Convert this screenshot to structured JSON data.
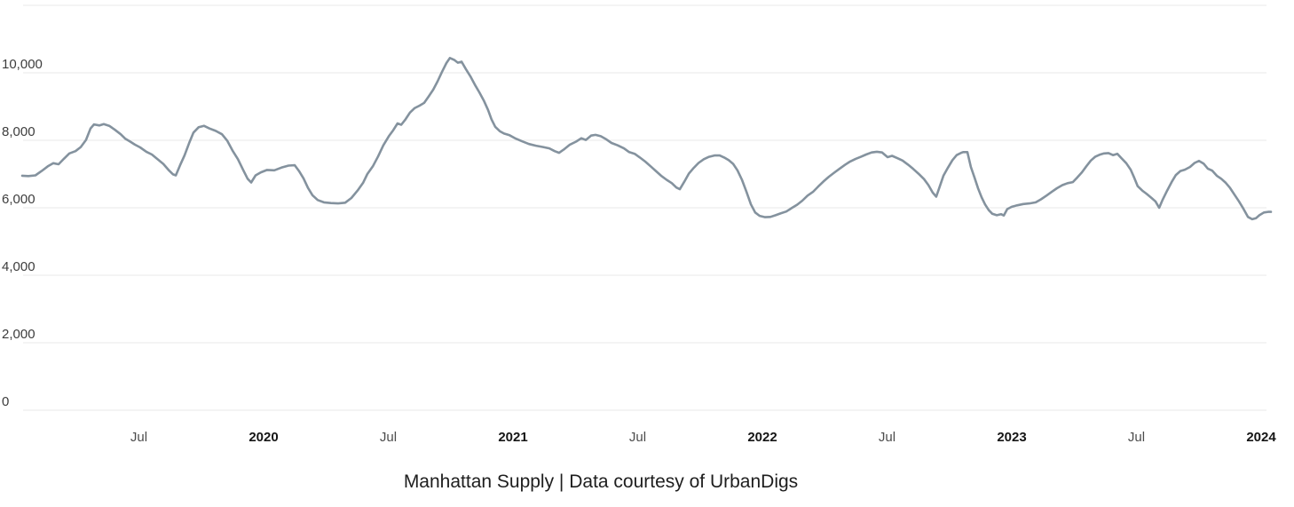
{
  "caption": "Manhattan Supply | Data courtesy of UrbanDigs",
  "chart_data": {
    "type": "line",
    "title": "Manhattan Supply",
    "caption": "Manhattan Supply | Data courtesy of UrbanDigs",
    "legend": [],
    "grid": true,
    "grid_color": "#e8e8e8",
    "line_color": "#7d8c99",
    "ylim": [
      0,
      12000
    ],
    "xlim_years": [
      2019.02,
      2024.06
    ],
    "y_axis": {
      "ticks": [
        {
          "value": 0,
          "label": "0"
        },
        {
          "value": 2000,
          "label": "2,000"
        },
        {
          "value": 4000,
          "label": "4,000"
        },
        {
          "value": 6000,
          "label": "6,000"
        },
        {
          "value": 8000,
          "label": "8,000"
        },
        {
          "value": 10000,
          "label": "10,000"
        },
        {
          "value": 12000,
          "label": ""
        }
      ]
    },
    "x_axis": {
      "ticks": [
        {
          "t": 2019.5,
          "label": "Jul",
          "year": false
        },
        {
          "t": 2020.0,
          "label": "2020",
          "year": true
        },
        {
          "t": 2020.5,
          "label": "Jul",
          "year": false
        },
        {
          "t": 2021.0,
          "label": "2021",
          "year": true
        },
        {
          "t": 2021.5,
          "label": "Jul",
          "year": false
        },
        {
          "t": 2022.0,
          "label": "2022",
          "year": true
        },
        {
          "t": 2022.5,
          "label": "Jul",
          "year": false
        },
        {
          "t": 2023.0,
          "label": "2023",
          "year": true
        },
        {
          "t": 2023.5,
          "label": "Jul",
          "year": false
        },
        {
          "t": 2024.0,
          "label": "2024",
          "year": true
        }
      ]
    },
    "series": [
      {
        "name": "Manhattan Supply",
        "points": [
          [
            2019.032,
            6950
          ],
          [
            2019.057,
            6940
          ],
          [
            2019.085,
            6960
          ],
          [
            2019.11,
            7090
          ],
          [
            2019.135,
            7230
          ],
          [
            2019.157,
            7320
          ],
          [
            2019.178,
            7290
          ],
          [
            2019.199,
            7450
          ],
          [
            2019.221,
            7610
          ],
          [
            2019.246,
            7680
          ],
          [
            2019.267,
            7800
          ],
          [
            2019.288,
            8010
          ],
          [
            2019.306,
            8350
          ],
          [
            2019.32,
            8470
          ],
          [
            2019.342,
            8440
          ],
          [
            2019.359,
            8480
          ],
          [
            2019.381,
            8430
          ],
          [
            2019.402,
            8320
          ],
          [
            2019.427,
            8180
          ],
          [
            2019.445,
            8050
          ],
          [
            2019.463,
            7970
          ],
          [
            2019.484,
            7870
          ],
          [
            2019.505,
            7790
          ],
          [
            2019.53,
            7660
          ],
          [
            2019.552,
            7580
          ],
          [
            2019.577,
            7430
          ],
          [
            2019.598,
            7300
          ],
          [
            2019.619,
            7120
          ],
          [
            2019.637,
            6990
          ],
          [
            2019.648,
            6960
          ],
          [
            2019.665,
            7260
          ],
          [
            2019.683,
            7550
          ],
          [
            2019.701,
            7910
          ],
          [
            2019.719,
            8230
          ],
          [
            2019.74,
            8390
          ],
          [
            2019.761,
            8430
          ],
          [
            2019.783,
            8350
          ],
          [
            2019.808,
            8280
          ],
          [
            2019.833,
            8180
          ],
          [
            2019.854,
            7990
          ],
          [
            2019.875,
            7700
          ],
          [
            2019.897,
            7440
          ],
          [
            2019.918,
            7120
          ],
          [
            2019.936,
            6860
          ],
          [
            2019.95,
            6750
          ],
          [
            2019.968,
            6960
          ],
          [
            2019.989,
            7050
          ],
          [
            2020.014,
            7120
          ],
          [
            2020.043,
            7110
          ],
          [
            2020.071,
            7190
          ],
          [
            2020.1,
            7250
          ],
          [
            2020.125,
            7260
          ],
          [
            2020.142,
            7090
          ],
          [
            2020.16,
            6870
          ],
          [
            2020.178,
            6590
          ],
          [
            2020.196,
            6370
          ],
          [
            2020.217,
            6230
          ],
          [
            2020.242,
            6160
          ],
          [
            2020.27,
            6140
          ],
          [
            2020.299,
            6130
          ],
          [
            2020.327,
            6150
          ],
          [
            2020.352,
            6290
          ],
          [
            2020.377,
            6510
          ],
          [
            2020.399,
            6740
          ],
          [
            2020.416,
            7000
          ],
          [
            2020.438,
            7230
          ],
          [
            2020.459,
            7520
          ],
          [
            2020.48,
            7850
          ],
          [
            2020.502,
            8120
          ],
          [
            2020.52,
            8300
          ],
          [
            2020.537,
            8500
          ],
          [
            2020.552,
            8460
          ],
          [
            2020.569,
            8620
          ],
          [
            2020.587,
            8820
          ],
          [
            2020.605,
            8950
          ],
          [
            2020.626,
            9030
          ],
          [
            2020.644,
            9110
          ],
          [
            2020.662,
            9300
          ],
          [
            2020.68,
            9500
          ],
          [
            2020.698,
            9750
          ],
          [
            2020.715,
            10020
          ],
          [
            2020.733,
            10290
          ],
          [
            2020.747,
            10440
          ],
          [
            2020.765,
            10380
          ],
          [
            2020.779,
            10300
          ],
          [
            2020.794,
            10330
          ],
          [
            2020.811,
            10110
          ],
          [
            2020.829,
            9900
          ],
          [
            2020.847,
            9650
          ],
          [
            2020.865,
            9420
          ],
          [
            2020.883,
            9180
          ],
          [
            2020.9,
            8900
          ],
          [
            2020.914,
            8620
          ],
          [
            2020.929,
            8400
          ],
          [
            2020.947,
            8270
          ],
          [
            2020.964,
            8200
          ],
          [
            2020.986,
            8150
          ],
          [
            2021.011,
            8050
          ],
          [
            2021.036,
            7970
          ],
          [
            2021.064,
            7890
          ],
          [
            2021.092,
            7840
          ],
          [
            2021.121,
            7800
          ],
          [
            2021.146,
            7760
          ],
          [
            2021.167,
            7680
          ],
          [
            2021.185,
            7630
          ],
          [
            2021.206,
            7740
          ],
          [
            2021.228,
            7870
          ],
          [
            2021.253,
            7960
          ],
          [
            2021.274,
            8060
          ],
          [
            2021.292,
            8010
          ],
          [
            2021.313,
            8140
          ],
          [
            2021.331,
            8160
          ],
          [
            2021.352,
            8120
          ],
          [
            2021.374,
            8030
          ],
          [
            2021.395,
            7920
          ],
          [
            2021.42,
            7850
          ],
          [
            2021.445,
            7760
          ],
          [
            2021.466,
            7650
          ],
          [
            2021.488,
            7600
          ],
          [
            2021.509,
            7490
          ],
          [
            2021.53,
            7370
          ],
          [
            2021.552,
            7230
          ],
          [
            2021.573,
            7090
          ],
          [
            2021.594,
            6950
          ],
          [
            2021.616,
            6830
          ],
          [
            2021.637,
            6730
          ],
          [
            2021.655,
            6600
          ],
          [
            2021.669,
            6550
          ],
          [
            2021.687,
            6770
          ],
          [
            2021.705,
            7010
          ],
          [
            2021.722,
            7160
          ],
          [
            2021.744,
            7330
          ],
          [
            2021.765,
            7440
          ],
          [
            2021.786,
            7510
          ],
          [
            2021.808,
            7550
          ],
          [
            2021.829,
            7550
          ],
          [
            2021.847,
            7490
          ],
          [
            2021.865,
            7410
          ],
          [
            2021.883,
            7300
          ],
          [
            2021.9,
            7110
          ],
          [
            2021.918,
            6830
          ],
          [
            2021.936,
            6480
          ],
          [
            2021.954,
            6100
          ],
          [
            2021.971,
            5860
          ],
          [
            2021.989,
            5760
          ],
          [
            2022.011,
            5720
          ],
          [
            2022.032,
            5730
          ],
          [
            2022.053,
            5780
          ],
          [
            2022.075,
            5840
          ],
          [
            2022.096,
            5890
          ],
          [
            2022.117,
            5990
          ],
          [
            2022.139,
            6090
          ],
          [
            2022.16,
            6210
          ],
          [
            2022.181,
            6360
          ],
          [
            2022.203,
            6470
          ],
          [
            2022.224,
            6630
          ],
          [
            2022.245,
            6780
          ],
          [
            2022.267,
            6920
          ],
          [
            2022.288,
            7040
          ],
          [
            2022.31,
            7160
          ],
          [
            2022.331,
            7270
          ],
          [
            2022.352,
            7370
          ],
          [
            2022.374,
            7450
          ],
          [
            2022.395,
            7510
          ],
          [
            2022.416,
            7580
          ],
          [
            2022.438,
            7640
          ],
          [
            2022.459,
            7660
          ],
          [
            2022.48,
            7640
          ],
          [
            2022.502,
            7500
          ],
          [
            2022.52,
            7540
          ],
          [
            2022.541,
            7470
          ],
          [
            2022.562,
            7400
          ],
          [
            2022.584,
            7280
          ],
          [
            2022.605,
            7150
          ],
          [
            2022.626,
            7010
          ],
          [
            2022.648,
            6850
          ],
          [
            2022.666,
            6670
          ],
          [
            2022.683,
            6450
          ],
          [
            2022.697,
            6330
          ],
          [
            2022.712,
            6650
          ],
          [
            2022.726,
            6950
          ],
          [
            2022.744,
            7190
          ],
          [
            2022.762,
            7410
          ],
          [
            2022.779,
            7560
          ],
          [
            2022.797,
            7630
          ],
          [
            2022.805,
            7650
          ],
          [
            2022.822,
            7650
          ],
          [
            2022.836,
            7210
          ],
          [
            2022.851,
            6890
          ],
          [
            2022.865,
            6570
          ],
          [
            2022.879,
            6310
          ],
          [
            2022.893,
            6100
          ],
          [
            2022.908,
            5930
          ],
          [
            2022.922,
            5820
          ],
          [
            2022.94,
            5780
          ],
          [
            2022.957,
            5810
          ],
          [
            2022.968,
            5770
          ],
          [
            2022.982,
            5960
          ],
          [
            2023.0,
            6030
          ],
          [
            2023.021,
            6070
          ],
          [
            2023.046,
            6110
          ],
          [
            2023.071,
            6130
          ],
          [
            2023.096,
            6160
          ],
          [
            2023.117,
            6250
          ],
          [
            2023.139,
            6360
          ],
          [
            2023.16,
            6470
          ],
          [
            2023.181,
            6580
          ],
          [
            2023.203,
            6670
          ],
          [
            2023.224,
            6730
          ],
          [
            2023.245,
            6760
          ],
          [
            2023.263,
            6900
          ],
          [
            2023.281,
            7050
          ],
          [
            2023.299,
            7230
          ],
          [
            2023.317,
            7400
          ],
          [
            2023.334,
            7510
          ],
          [
            2023.352,
            7570
          ],
          [
            2023.37,
            7610
          ],
          [
            2023.388,
            7620
          ],
          [
            2023.406,
            7560
          ],
          [
            2023.423,
            7600
          ],
          [
            2023.441,
            7460
          ],
          [
            2023.459,
            7320
          ],
          [
            2023.477,
            7130
          ],
          [
            2023.491,
            6890
          ],
          [
            2023.505,
            6640
          ],
          [
            2023.523,
            6510
          ],
          [
            2023.541,
            6410
          ],
          [
            2023.559,
            6300
          ],
          [
            2023.576,
            6190
          ],
          [
            2023.591,
            6000
          ],
          [
            2023.605,
            6240
          ],
          [
            2023.623,
            6510
          ],
          [
            2023.641,
            6760
          ],
          [
            2023.658,
            6970
          ],
          [
            2023.676,
            7090
          ],
          [
            2023.694,
            7130
          ],
          [
            2023.715,
            7210
          ],
          [
            2023.733,
            7330
          ],
          [
            2023.751,
            7390
          ],
          [
            2023.769,
            7310
          ],
          [
            2023.786,
            7160
          ],
          [
            2023.804,
            7100
          ],
          [
            2023.822,
            6950
          ],
          [
            2023.84,
            6860
          ],
          [
            2023.858,
            6740
          ],
          [
            2023.875,
            6590
          ],
          [
            2023.893,
            6390
          ],
          [
            2023.911,
            6190
          ],
          [
            2023.929,
            5970
          ],
          [
            2023.947,
            5730
          ],
          [
            2023.964,
            5660
          ],
          [
            2023.979,
            5690
          ],
          [
            2023.993,
            5780
          ],
          [
            2024.011,
            5860
          ],
          [
            2024.028,
            5880
          ],
          [
            2024.039,
            5880
          ]
        ]
      }
    ]
  }
}
